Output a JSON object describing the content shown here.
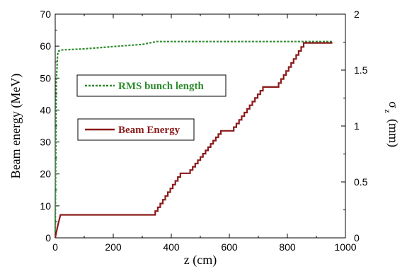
{
  "chart_data": {
    "type": "line",
    "xlabel": "z (cm)",
    "ylabel_left": "Beam energy (MeV)",
    "ylabel_right": "σ_z (mm)",
    "ylabel_right_main": "σ",
    "ylabel_right_sub": "z",
    "ylabel_right_unit": "(mm)",
    "xlim": [
      0,
      1000
    ],
    "ylim_left": [
      0,
      70
    ],
    "ylim_right": [
      0,
      2
    ],
    "x_ticks": [
      "0",
      "200",
      "400",
      "600",
      "800",
      "1000"
    ],
    "y_left_ticks": [
      "0",
      "10",
      "20",
      "30",
      "40",
      "50",
      "60",
      "70"
    ],
    "y_right_ticks": [
      "0",
      "0.5",
      "1",
      "1.5",
      "2"
    ],
    "grid": false,
    "legend": [
      {
        "label": "RMS bunch length",
        "color": "#2e8b2e",
        "style": "dashed"
      },
      {
        "label": "Beam Energy",
        "color": "#8b1a1a",
        "style": "solid"
      }
    ],
    "series": [
      {
        "name": "RMS bunch length",
        "axis": "right",
        "color": "#2e8b2e",
        "x": [
          0,
          4,
          8,
          12,
          20,
          100,
          200,
          300,
          350,
          500,
          700,
          900,
          955
        ],
        "y": [
          0.02,
          1.4,
          1.64,
          1.67,
          1.68,
          1.69,
          1.71,
          1.73,
          1.755,
          1.755,
          1.755,
          1.755,
          1.755
        ]
      },
      {
        "name": "Beam Energy",
        "axis": "left",
        "color": "#8b1a1a",
        "x": [
          0,
          8,
          18,
          340,
          435,
          460,
          575,
          610,
          720,
          765,
          860,
          955
        ],
        "y": [
          0,
          3.5,
          7.2,
          7.2,
          20.2,
          20.2,
          33.5,
          33.5,
          47.2,
          47.2,
          61,
          61
        ]
      }
    ]
  }
}
